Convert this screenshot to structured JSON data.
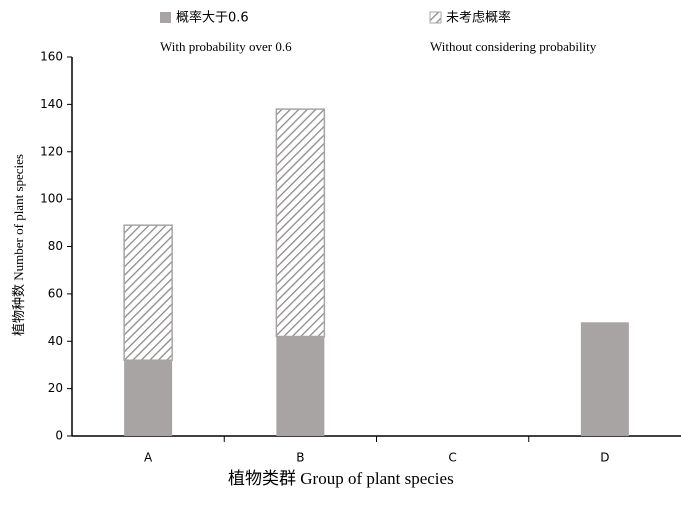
{
  "chart_data": {
    "type": "stacked_bar",
    "x_label": "植物类群 Group of plant species",
    "y_label": "植物种数 Number of plant species",
    "categories": [
      "A",
      "B",
      "C",
      "D"
    ],
    "series": [
      {
        "name": "概率大于0.6",
        "name_en": "With probability over 0.6",
        "color": "#a8a4a4",
        "pattern": "solid",
        "values": [
          32,
          42,
          0,
          48
        ]
      },
      {
        "name": "未考虑概率",
        "name_en": "Without considering probability",
        "color": "#a8a4a4",
        "pattern": "hatch",
        "values": [
          57,
          96,
          0,
          0
        ]
      }
    ],
    "ylim": [
      0,
      160
    ],
    "yticks": [
      0,
      20,
      40,
      60,
      80,
      100,
      120,
      140,
      160
    ]
  }
}
